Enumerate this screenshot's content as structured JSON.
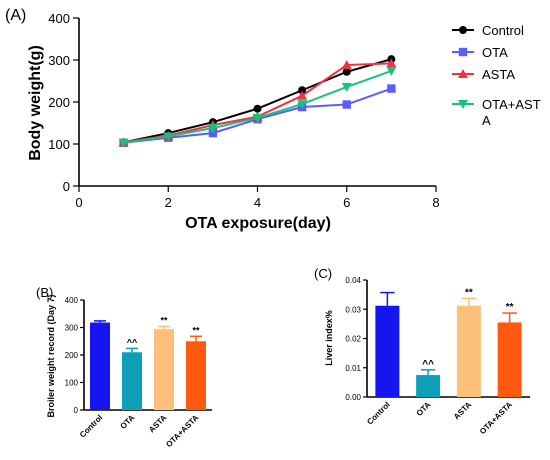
{
  "chart_data": [
    {
      "panel": "(A)",
      "type": "line",
      "xlabel": "OTA exposure(day)",
      "ylabel": "Body weight(g)",
      "xlim": [
        0,
        8
      ],
      "ylim": [
        0,
        400
      ],
      "xticks": [
        0,
        2,
        4,
        6,
        8
      ],
      "yticks": [
        0,
        100,
        200,
        300,
        400
      ],
      "x": [
        1,
        2,
        3,
        4,
        5,
        6,
        7
      ],
      "legend_position": "right",
      "series": [
        {
          "name": "Control",
          "color": "#000000",
          "marker": "circle",
          "values": [
            104,
            126,
            152,
            184,
            228,
            272,
            302
          ]
        },
        {
          "name": "OTA",
          "color": "#5b5bff",
          "marker": "square",
          "values": [
            103,
            115,
            126,
            159,
            188,
            194,
            232
          ]
        },
        {
          "name": "ASTA",
          "color": "#ee3344",
          "marker": "triangle-up",
          "values": [
            104,
            120,
            145,
            165,
            215,
            288,
            292
          ]
        },
        {
          "name": "OTA+AST\nA",
          "color": "#19c27a",
          "marker": "triangle-down",
          "values": [
            103,
            118,
            138,
            162,
            195,
            236,
            274
          ]
        }
      ]
    },
    {
      "panel": "(B)",
      "type": "bar",
      "ylabel": "Broiler weight record (Day 7)",
      "ylim": [
        0,
        400
      ],
      "yticks": [
        0,
        100,
        200,
        300,
        400
      ],
      "categories": [
        "Control",
        "OTA",
        "ASTA",
        "OTA+ASTA"
      ],
      "values": [
        318,
        210,
        294,
        250
      ],
      "errors": [
        6,
        14,
        10,
        18
      ],
      "colors": [
        "#1515f0",
        "#0f9eb8",
        "#fcc07a",
        "#ff5a10"
      ],
      "annotations": [
        "",
        "^^",
        "**",
        "**"
      ]
    },
    {
      "panel": "(C)",
      "type": "bar",
      "ylabel": "Liver index%",
      "ylim": [
        0,
        0.04
      ],
      "yticks": [
        "0.00",
        "0.01",
        "0.02",
        "0.03",
        "0.04"
      ],
      "categories": [
        "Control",
        "OTA",
        "ASTA",
        "OTA+ASTA"
      ],
      "values": [
        0.0312,
        0.0075,
        0.0312,
        0.0255
      ],
      "errors": [
        0.0045,
        0.0018,
        0.0025,
        0.0032
      ],
      "colors": [
        "#1515f0",
        "#0f9eb8",
        "#fcc07a",
        "#ff5a10"
      ],
      "annotations": [
        "",
        "^^",
        "**",
        "**"
      ]
    }
  ]
}
